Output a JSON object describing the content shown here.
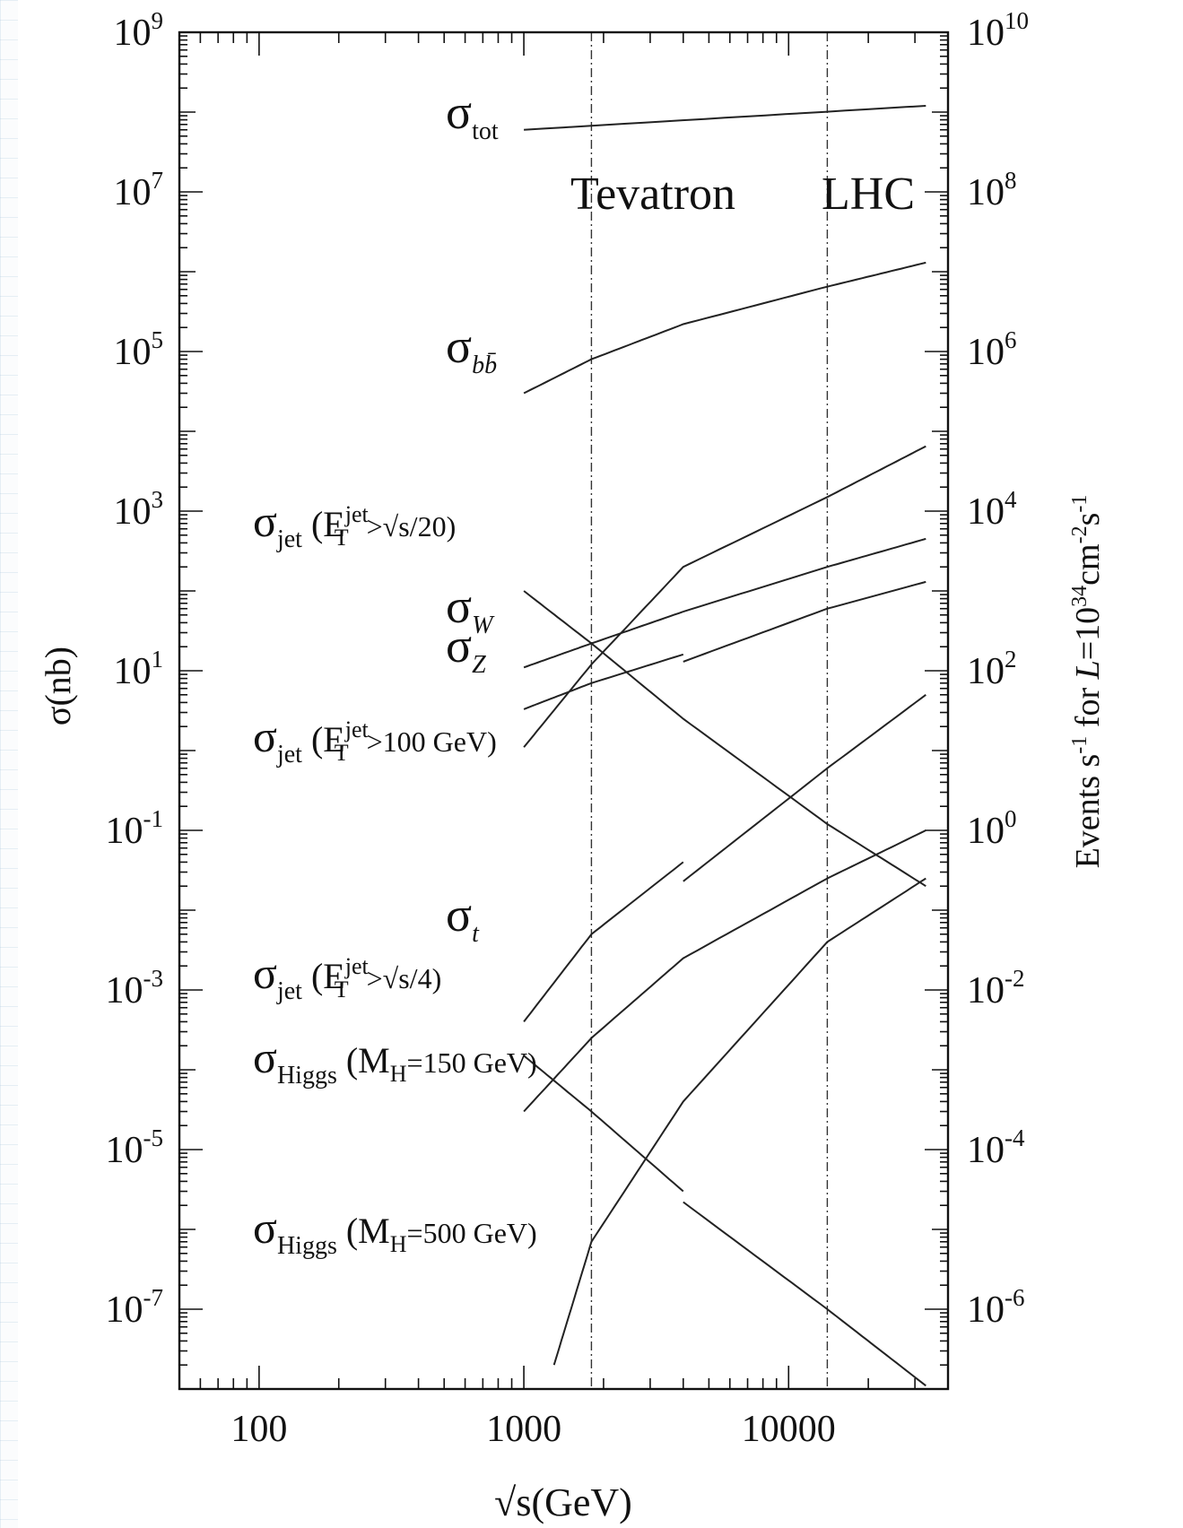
{
  "chart_data": {
    "type": "line",
    "title": "",
    "xlabel": "√s(GeV)",
    "ylabel": "σ(nb)",
    "y2label": "Events s⁻¹ for L=10³⁴cm⁻²s⁻¹",
    "xscale": "log",
    "yscale": "log",
    "xlim": [
      50,
      40000
    ],
    "ylim": [
      1e-08,
      1000000000.0
    ],
    "y2lim": [
      1e-07,
      10000000000.0
    ],
    "grid": false,
    "x_ticks": [
      {
        "value": 100,
        "label": "100"
      },
      {
        "value": 1000,
        "label": "1000"
      },
      {
        "value": 10000,
        "label": "10000"
      }
    ],
    "y_ticks": [
      {
        "value": 1000000000.0,
        "base": "10",
        "exp": "9"
      },
      {
        "value": 10000000.0,
        "base": "10",
        "exp": "7"
      },
      {
        "value": 100000.0,
        "base": "10",
        "exp": "5"
      },
      {
        "value": 1000.0,
        "base": "10",
        "exp": "3"
      },
      {
        "value": 10,
        "base": "10",
        "exp": "1"
      },
      {
        "value": 0.1,
        "base": "10",
        "exp": "-1"
      },
      {
        "value": 0.001,
        "base": "10",
        "exp": "-3"
      },
      {
        "value": 1e-05,
        "base": "10",
        "exp": "-5"
      },
      {
        "value": 1e-07,
        "base": "10",
        "exp": "-7"
      }
    ],
    "y2_ticks": [
      {
        "value": 10000000000.0,
        "base": "10",
        "exp": "10"
      },
      {
        "value": 100000000.0,
        "base": "10",
        "exp": "8"
      },
      {
        "value": 1000000.0,
        "base": "10",
        "exp": "6"
      },
      {
        "value": 10000.0,
        "base": "10",
        "exp": "4"
      },
      {
        "value": 100,
        "base": "10",
        "exp": "2"
      },
      {
        "value": 1,
        "base": "10",
        "exp": "0"
      },
      {
        "value": 0.01,
        "base": "10",
        "exp": "-2"
      },
      {
        "value": 0.0001,
        "base": "10",
        "exp": "-4"
      },
      {
        "value": 1e-06,
        "base": "10",
        "exp": "-6"
      }
    ],
    "vertical_lines": [
      {
        "x": 1800,
        "label": "Tevatron"
      },
      {
        "x": 14000,
        "label": "LHC"
      }
    ],
    "series": [
      {
        "name": "σ_tot",
        "x": [
          1000,
          33000
        ],
        "y": [
          60000000.0,
          120000000.0
        ]
      },
      {
        "name": "σ_bb̄",
        "x": [
          1000,
          1800,
          4000,
          14000,
          33000
        ],
        "y": [
          30000.0,
          80000.0,
          220000.0,
          650000.0,
          1300000.0
        ]
      },
      {
        "name": "σ_jet (E_T^jet > √s/20)",
        "x": [
          1000,
          1800,
          4000,
          14000,
          33000
        ],
        "y": [
          100,
          22,
          2.5,
          0.12,
          0.02
        ]
      },
      {
        "name": "σ_W",
        "x": [
          1000,
          1800,
          4000,
          4000,
          14000,
          33000
        ],
        "y": [
          11,
          22,
          55,
          55,
          200,
          450
        ]
      },
      {
        "name": "σ_Z",
        "x": [
          1000,
          1800,
          4000,
          4000,
          14000,
          33000
        ],
        "y": [
          3.3,
          7,
          16,
          13,
          60,
          130
        ]
      },
      {
        "name": "σ_jet (E_T^jet > 100 GeV)",
        "x": [
          1000,
          1800,
          4000,
          14000,
          33000
        ],
        "y": [
          1.1,
          12,
          200,
          1500,
          6500
        ]
      },
      {
        "name": "σ_t",
        "x": [
          1000,
          1800,
          4000,
          4000,
          14000,
          33000
        ],
        "y": [
          0.0004,
          0.005,
          0.04,
          0.023,
          0.6,
          5
        ]
      },
      {
        "name": "σ_jet (E_T^jet > √s/4)",
        "x": [
          1000,
          1800,
          4000,
          4000,
          14000,
          33000
        ],
        "y": [
          0.00015,
          3e-05,
          3e-06,
          2.2e-06,
          1e-07,
          1.1e-08
        ]
      },
      {
        "name": "σ_Higgs (M_H=150 GeV)",
        "x": [
          1000,
          1800,
          4000,
          14000,
          33000
        ],
        "y": [
          3e-05,
          0.00025,
          0.0025,
          0.025,
          0.1
        ]
      },
      {
        "name": "σ_Higgs (M_H=500 GeV)",
        "x": [
          1300,
          1800,
          4000,
          14000,
          33000
        ],
        "y": [
          2e-08,
          7e-07,
          4e-05,
          0.004,
          0.025
        ]
      }
    ],
    "labels": {
      "tot": {
        "main": "σ",
        "sub": "tot"
      },
      "bb": {
        "main": "σ",
        "sub": "bb̄"
      },
      "W": {
        "main": "σ",
        "sub": "W"
      },
      "Z": {
        "main": "σ",
        "sub": "Z"
      },
      "t": {
        "main": "σ",
        "sub": "t"
      },
      "jet20": {
        "main": "σ",
        "sub": "jet",
        "cond": "(E",
        "sup": "jet",
        "csub": "T",
        "rest": ">√s/20)"
      },
      "jet100": {
        "main": "σ",
        "sub": "jet",
        "cond": "(E",
        "sup": "jet",
        "csub": "T",
        "rest": ">100 GeV)"
      },
      "jet4": {
        "main": "σ",
        "sub": "jet",
        "cond": "(E",
        "sup": "jet",
        "csub": "T",
        "rest": ">√s/4)"
      },
      "h150": {
        "main": "σ",
        "sub": "Higgs",
        "cond": "(M",
        "csub": "H",
        "rest": "=150 GeV)"
      },
      "h500": {
        "main": "σ",
        "sub": "Higgs",
        "cond": "(M",
        "csub": "H",
        "rest": "=500 GeV)"
      }
    }
  }
}
